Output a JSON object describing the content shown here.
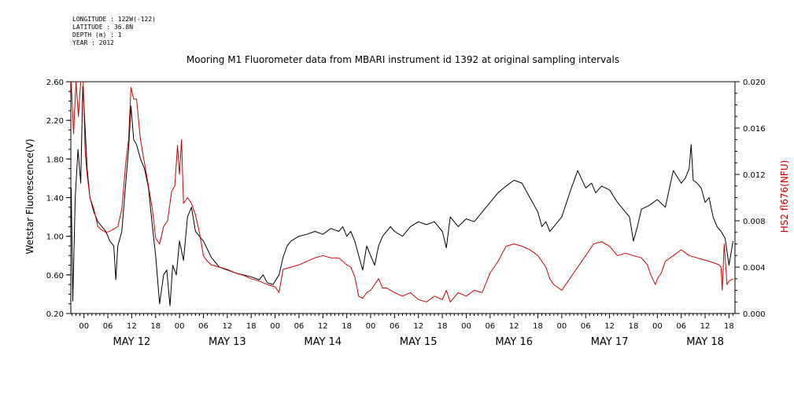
{
  "meta": {
    "longitude": "LONGITUDE : 122W(-122)",
    "latitude": "LATITUDE : 36.8N",
    "depth": "DEPTH (m) : 1",
    "year": "YEAR : 2012"
  },
  "chart_data": {
    "type": "line",
    "title": "Mooring M1 Fluorometer data from MBARI instrument id 1392 at original sampling intervals",
    "ylabel": "Wetstar Fluorescence(V)",
    "y2label": "HS2 fl676(NFU)",
    "ylim": [
      0.2,
      2.6
    ],
    "y2lim": [
      0.0,
      0.02
    ],
    "yticks": [
      "0.20",
      "0.60",
      "1.00",
      "1.40",
      "1.80",
      "2.20",
      "2.60"
    ],
    "y2ticks": [
      "0.000",
      "0.004",
      "0.008",
      "0.012",
      "0.016",
      "0.020"
    ],
    "xlim_hours": [
      -3.3,
      163.5
    ],
    "xticks": [
      "00",
      "06",
      "12",
      "18",
      "00",
      "06",
      "12",
      "18",
      "00",
      "06",
      "12",
      "18",
      "00",
      "06",
      "12",
      "18",
      "00",
      "06",
      "12",
      "18",
      "00",
      "06",
      "12",
      "18",
      "00",
      "06",
      "12",
      "18"
    ],
    "xtick_hours": [
      0,
      6,
      12,
      18,
      24,
      30,
      36,
      42,
      48,
      54,
      60,
      66,
      72,
      78,
      84,
      90,
      96,
      102,
      108,
      114,
      120,
      126,
      132,
      138,
      144,
      150,
      156,
      162
    ],
    "day_labels": [
      "MAY 12",
      "MAY 13",
      "MAY 14",
      "MAY 15",
      "MAY 16",
      "MAY 17",
      "MAY 18"
    ],
    "day_label_hours": [
      12,
      36,
      60,
      84,
      108,
      132,
      156
    ],
    "series": [
      {
        "name": "Wetstar Fluorescence(V)",
        "axis": "left",
        "color": "#000000",
        "x": [
          -3.2,
          -2.8,
          -2.2,
          -1.5,
          -0.8,
          -0.3,
          0.2,
          0.8,
          1.5,
          2.5,
          3.5,
          4.5,
          5.5,
          6.5,
          7.5,
          8.0,
          8.5,
          9.5,
          10.5,
          11.2,
          11.8,
          12.5,
          13.2,
          14.2,
          15.2,
          16.2,
          17.2,
          18.0,
          19.0,
          20.0,
          20.8,
          21.6,
          22.3,
          23.2,
          24.0,
          25.0,
          26.0,
          27.0,
          28.0,
          29.0,
          30.0,
          32.0,
          34.0,
          36.0,
          38.0,
          40.0,
          42.0,
          44.0,
          45.0,
          46.0,
          47.5,
          49.0,
          50.0,
          51.0,
          52.0,
          54.0,
          56.0,
          58.0,
          60.0,
          62.0,
          64.0,
          65.0,
          66.0,
          67.0,
          68.0,
          69.0,
          70.0,
          71.0,
          72.0,
          73.0,
          74.0,
          75.0,
          76.0,
          77.0,
          78.0,
          80.0,
          82.0,
          84.0,
          86.0,
          88.0,
          90.0,
          91.0,
          92.0,
          94.0,
          96.0,
          98.0,
          100.0,
          102.0,
          104.0,
          106.0,
          108.0,
          110.0,
          112.0,
          114.0,
          115.0,
          116.0,
          117.0,
          118.0,
          120.0,
          122.0,
          124.0,
          126.0,
          127.5,
          128.5,
          130.0,
          132.0,
          134.0,
          136.0,
          137.0,
          138.0,
          139.0,
          140.0,
          142.0,
          144.0,
          146.0,
          148.0,
          150.0,
          151.0,
          152.0,
          152.5,
          153.0,
          154.0,
          155.0,
          156.0,
          157.0,
          158.0,
          159.0,
          160.0,
          161.0,
          162.0,
          163.0
        ],
        "values": [
          1.5,
          0.33,
          1.4,
          1.9,
          1.55,
          2.55,
          2.2,
          1.7,
          1.4,
          1.25,
          1.15,
          1.1,
          1.05,
          0.95,
          0.9,
          0.55,
          0.9,
          1.05,
          1.55,
          1.9,
          2.35,
          2.0,
          1.95,
          1.8,
          1.7,
          1.5,
          1.1,
          0.8,
          0.3,
          0.6,
          0.65,
          0.28,
          0.7,
          0.6,
          0.95,
          0.75,
          1.2,
          1.3,
          1.05,
          1.0,
          0.95,
          0.78,
          0.68,
          0.65,
          0.62,
          0.6,
          0.58,
          0.55,
          0.6,
          0.52,
          0.5,
          0.6,
          0.78,
          0.9,
          0.95,
          1.0,
          1.02,
          1.05,
          1.02,
          1.08,
          1.05,
          1.1,
          1.0,
          1.05,
          0.95,
          0.8,
          0.65,
          0.9,
          0.8,
          0.7,
          0.9,
          1.0,
          1.05,
          1.1,
          1.05,
          1.0,
          1.1,
          1.15,
          1.12,
          1.15,
          1.05,
          0.88,
          1.2,
          1.1,
          1.18,
          1.15,
          1.25,
          1.35,
          1.45,
          1.52,
          1.58,
          1.55,
          1.4,
          1.25,
          1.1,
          1.15,
          1.05,
          1.1,
          1.2,
          1.45,
          1.68,
          1.5,
          1.55,
          1.45,
          1.52,
          1.48,
          1.35,
          1.25,
          1.2,
          0.95,
          1.1,
          1.28,
          1.32,
          1.38,
          1.3,
          1.68,
          1.55,
          1.6,
          1.7,
          1.95,
          1.58,
          1.55,
          1.5,
          1.35,
          1.4,
          1.2,
          1.1,
          1.05,
          0.98,
          0.7,
          0.95
        ]
      },
      {
        "name": "HS2 fl676(NFU)",
        "axis": "right",
        "color": "#cc0000",
        "x": [
          -3.2,
          -2.6,
          -2.0,
          -1.4,
          -0.8,
          -0.2,
          0.3,
          0.8,
          1.5,
          2.5,
          3.5,
          4.5,
          5.5,
          6.5,
          7.5,
          8.5,
          9.5,
          10.5,
          11.2,
          11.8,
          12.5,
          13.2,
          14.2,
          15.2,
          16.2,
          17.2,
          18.0,
          19.0,
          20.0,
          21.0,
          22.0,
          22.8,
          23.5,
          24.0,
          24.5,
          25.0,
          26.0,
          27.0,
          28.0,
          29.0,
          30.0,
          31.0,
          32.0,
          34.0,
          36.0,
          38.0,
          40.0,
          42.0,
          44.0,
          46.0,
          48.0,
          49.0,
          50.0,
          52.0,
          54.0,
          56.0,
          58.0,
          60.0,
          62.0,
          64.0,
          65.0,
          66.0,
          67.0,
          68.0,
          69.0,
          70.0,
          71.0,
          72.0,
          73.0,
          74.0,
          75.0,
          76.0,
          78.0,
          80.0,
          82.0,
          84.0,
          86.0,
          88.0,
          90.0,
          91.0,
          92.0,
          94.0,
          96.0,
          98.0,
          100.0,
          102.0,
          104.0,
          106.0,
          108.0,
          110.0,
          112.0,
          114.0,
          115.0,
          116.0,
          117.0,
          118.0,
          120.0,
          122.0,
          124.0,
          126.0,
          128.0,
          130.0,
          132.0,
          134.0,
          136.0,
          138.0,
          140.0,
          141.5,
          142.2,
          142.8,
          143.5,
          144.0,
          145.0,
          146.0,
          148.0,
          150.0,
          152.0,
          154.0,
          156.0,
          158.0,
          159.5,
          160.0,
          160.3,
          160.8,
          161.5,
          162.0,
          163.0
        ],
        "values": [
          0.02,
          0.0155,
          0.02,
          0.017,
          0.02,
          0.02,
          0.014,
          0.012,
          0.01,
          0.009,
          0.0075,
          0.0072,
          0.007,
          0.0071,
          0.0073,
          0.0075,
          0.009,
          0.013,
          0.015,
          0.0195,
          0.0185,
          0.0185,
          0.015,
          0.013,
          0.011,
          0.009,
          0.0065,
          0.006,
          0.0075,
          0.008,
          0.0105,
          0.011,
          0.0145,
          0.012,
          0.015,
          0.0095,
          0.01,
          0.0095,
          0.0085,
          0.007,
          0.005,
          0.0045,
          0.0042,
          0.004,
          0.0038,
          0.0035,
          0.0033,
          0.003,
          0.0028,
          0.0025,
          0.0023,
          0.0018,
          0.0038,
          0.004,
          0.0042,
          0.0045,
          0.0048,
          0.005,
          0.0048,
          0.0048,
          0.0045,
          0.0042,
          0.004,
          0.0032,
          0.0015,
          0.0013,
          0.0018,
          0.002,
          0.0025,
          0.003,
          0.0022,
          0.0022,
          0.0018,
          0.0015,
          0.0018,
          0.0012,
          0.001,
          0.0015,
          0.0012,
          0.002,
          0.001,
          0.0018,
          0.0015,
          0.002,
          0.0018,
          0.0035,
          0.0045,
          0.0058,
          0.006,
          0.0058,
          0.0055,
          0.005,
          0.0045,
          0.004,
          0.003,
          0.0025,
          0.002,
          0.003,
          0.004,
          0.005,
          0.006,
          0.0062,
          0.0058,
          0.005,
          0.0052,
          0.005,
          0.0048,
          0.0042,
          0.0035,
          0.003,
          0.0025,
          0.003,
          0.0035,
          0.0045,
          0.005,
          0.0055,
          0.005,
          0.0048,
          0.0046,
          0.0044,
          0.0042,
          0.004,
          0.002,
          0.006,
          0.0025,
          0.0028,
          0.003
        ]
      }
    ]
  }
}
